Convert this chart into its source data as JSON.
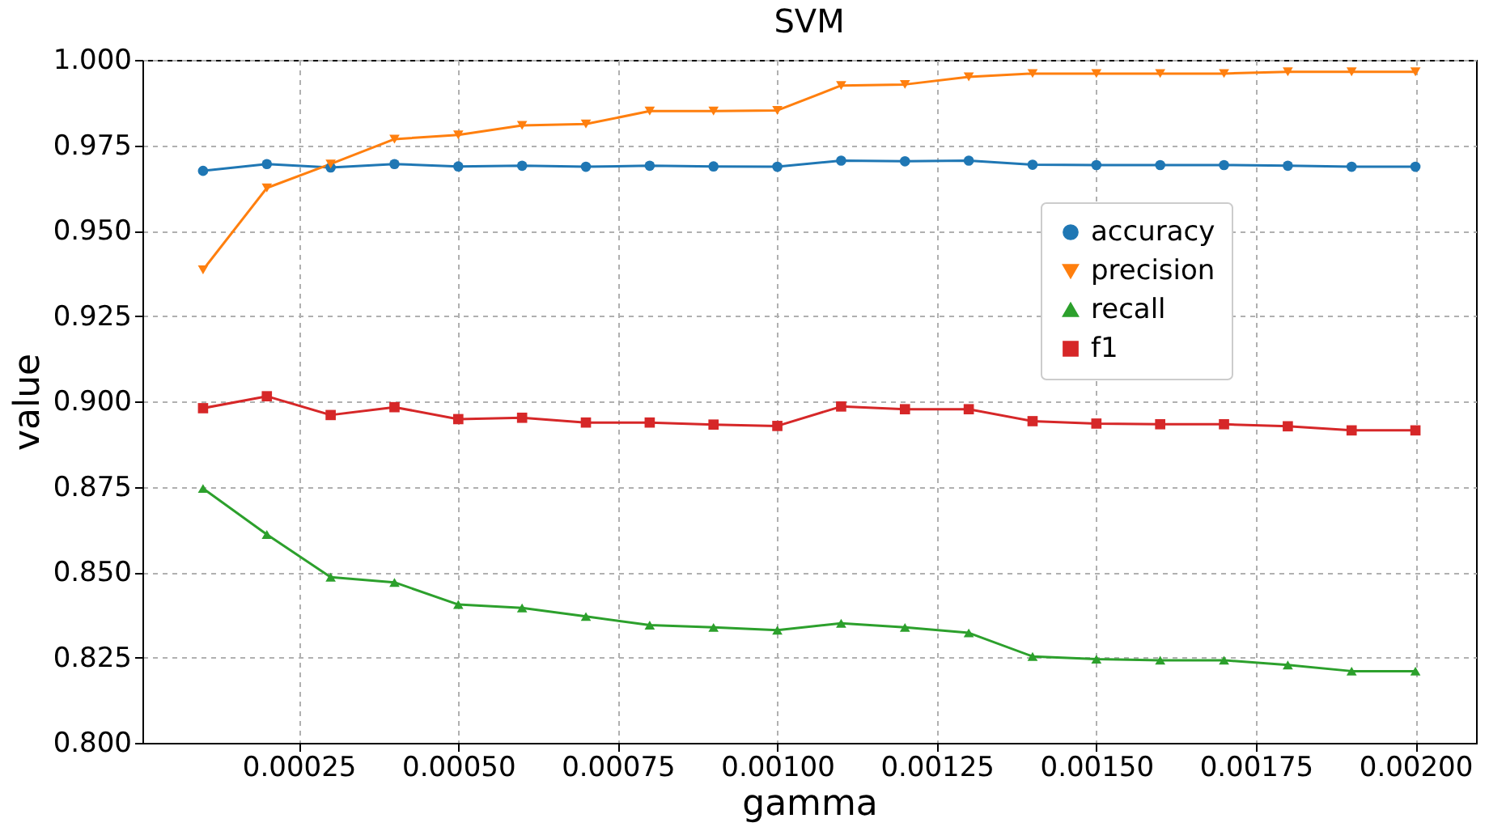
{
  "chart_data": {
    "type": "line",
    "title": "SVM",
    "xlabel": "gamma",
    "ylabel": "value",
    "x": [
      0.0001,
      0.0002,
      0.0003,
      0.0004,
      0.0005,
      0.0006,
      0.0007,
      0.0008,
      0.0009,
      0.001,
      0.0011,
      0.0012,
      0.0013,
      0.0014,
      0.0015,
      0.0016,
      0.0017,
      0.0018,
      0.0019,
      0.002
    ],
    "series": [
      {
        "name": "accuracy",
        "color": "#1f77b4",
        "marker": "circle",
        "values": [
          0.9675,
          0.9695,
          0.9685,
          0.9695,
          0.9688,
          0.969,
          0.9687,
          0.969,
          0.9688,
          0.9687,
          0.9705,
          0.9703,
          0.9705,
          0.9693,
          0.9692,
          0.9692,
          0.9692,
          0.969,
          0.9687,
          0.9687
        ]
      },
      {
        "name": "precision",
        "color": "#ff7f0e",
        "marker": "triangle-down",
        "values": [
          0.9385,
          0.9625,
          0.9695,
          0.9768,
          0.978,
          0.9808,
          0.9812,
          0.985,
          0.985,
          0.9852,
          0.9925,
          0.9928,
          0.995,
          0.996,
          0.996,
          0.996,
          0.996,
          0.9965,
          0.9965,
          0.9965
        ]
      },
      {
        "name": "recall",
        "color": "#2ca02c",
        "marker": "triangle",
        "values": [
          0.8745,
          0.861,
          0.8485,
          0.847,
          0.8405,
          0.8395,
          0.837,
          0.8345,
          0.8338,
          0.833,
          0.835,
          0.8338,
          0.8322,
          0.8253,
          0.8245,
          0.8242,
          0.8242,
          0.8228,
          0.821,
          0.821
        ]
      },
      {
        "name": "f1",
        "color": "#d62728",
        "marker": "square",
        "values": [
          0.898,
          0.9015,
          0.896,
          0.8983,
          0.8948,
          0.8952,
          0.8938,
          0.8938,
          0.8932,
          0.8928,
          0.8985,
          0.8977,
          0.8977,
          0.8942,
          0.8935,
          0.8933,
          0.8933,
          0.8927,
          0.8915,
          0.8915
        ]
      }
    ],
    "xlim": [
      5e-06,
      0.002095
    ],
    "xticks": [
      {
        "value": 0.00025,
        "label": "0.00025"
      },
      {
        "value": 0.0005,
        "label": "0.00050"
      },
      {
        "value": 0.00075,
        "label": "0.00075"
      },
      {
        "value": 0.001,
        "label": "0.00100"
      },
      {
        "value": 0.00125,
        "label": "0.00125"
      },
      {
        "value": 0.0015,
        "label": "0.00150"
      },
      {
        "value": 0.00175,
        "label": "0.00175"
      },
      {
        "value": 0.002,
        "label": "0.00200"
      }
    ],
    "ylim": [
      0.8,
      1.0
    ],
    "yticks": [
      {
        "value": 0.8,
        "label": "0.800"
      },
      {
        "value": 0.825,
        "label": "0.825"
      },
      {
        "value": 0.85,
        "label": "0.850"
      },
      {
        "value": 0.875,
        "label": "0.875"
      },
      {
        "value": 0.9,
        "label": "0.900"
      },
      {
        "value": 0.925,
        "label": "0.925"
      },
      {
        "value": 0.95,
        "label": "0.950"
      },
      {
        "value": 0.975,
        "label": "0.975"
      },
      {
        "value": 1.0,
        "label": "1.000"
      }
    ],
    "grid": true,
    "legend": "right",
    "line_style": "solid"
  }
}
